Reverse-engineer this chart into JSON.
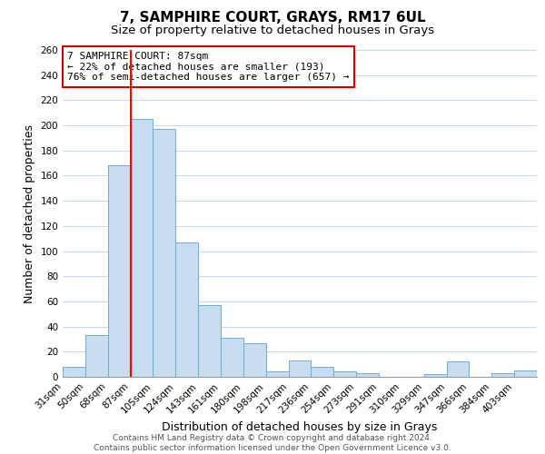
{
  "title": "7, SAMPHIRE COURT, GRAYS, RM17 6UL",
  "subtitle": "Size of property relative to detached houses in Grays",
  "xlabel": "Distribution of detached houses by size in Grays",
  "ylabel": "Number of detached properties",
  "bin_labels": [
    "31sqm",
    "50sqm",
    "68sqm",
    "87sqm",
    "105sqm",
    "124sqm",
    "143sqm",
    "161sqm",
    "180sqm",
    "198sqm",
    "217sqm",
    "236sqm",
    "254sqm",
    "273sqm",
    "291sqm",
    "310sqm",
    "329sqm",
    "347sqm",
    "366sqm",
    "384sqm",
    "403sqm"
  ],
  "bar_heights": [
    8,
    33,
    168,
    205,
    197,
    107,
    57,
    31,
    27,
    4,
    13,
    8,
    4,
    3,
    0,
    0,
    2,
    12,
    0,
    3,
    5
  ],
  "bar_color": "#c9ddf0",
  "bar_edge_color": "#6baed6",
  "red_line_index": 3,
  "ylim": [
    0,
    260
  ],
  "yticks": [
    0,
    20,
    40,
    60,
    80,
    100,
    120,
    140,
    160,
    180,
    200,
    220,
    240,
    260
  ],
  "annotation_title": "7 SAMPHIRE COURT: 87sqm",
  "annotation_line1": "← 22% of detached houses are smaller (193)",
  "annotation_line2": "76% of semi-detached houses are larger (657) →",
  "annotation_box_color": "#ffffff",
  "annotation_box_edge": "#cc0000",
  "footer_line1": "Contains HM Land Registry data © Crown copyright and database right 2024.",
  "footer_line2": "Contains public sector information licensed under the Open Government Licence v3.0.",
  "title_fontsize": 11,
  "subtitle_fontsize": 9.5,
  "axis_label_fontsize": 9,
  "tick_fontsize": 7.5,
  "annotation_fontsize": 8,
  "footer_fontsize": 6.5
}
